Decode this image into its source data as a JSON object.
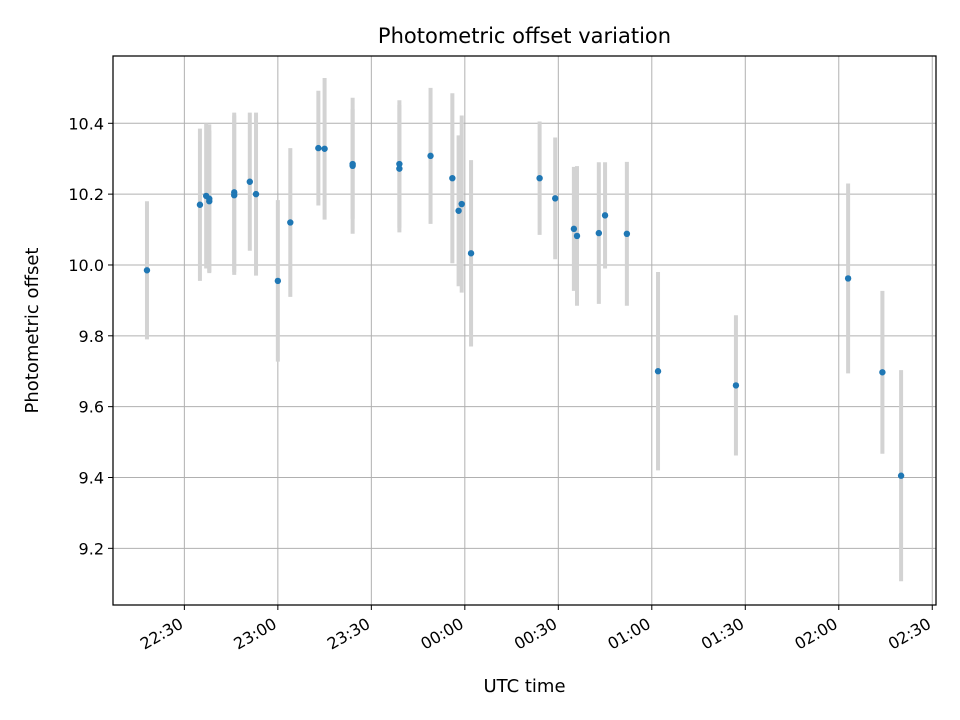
{
  "chart_data": {
    "type": "scatter",
    "title": "Photometric offset variation",
    "xlabel": "UTC time",
    "ylabel": "Photometric offset",
    "x_ticks": [
      "22:30",
      "23:00",
      "23:30",
      "00:00",
      "00:30",
      "01:00",
      "01:30",
      "02:00",
      "02:30"
    ],
    "x_tick_minutes": [
      -90,
      -60,
      -30,
      0,
      30,
      60,
      90,
      120,
      150
    ],
    "y_ticks": [
      "9.2",
      "9.4",
      "9.6",
      "9.8",
      "10.0",
      "10.2",
      "10.4"
    ],
    "xlim_minutes": [
      -112.9,
      151.2
    ],
    "ylim": [
      9.04,
      10.59
    ],
    "grid": true,
    "colors": {
      "point": "#1f77b4",
      "errorbar": "#d3d3d3",
      "grid": "#b0b0b0"
    },
    "points": [
      {
        "time": "22:18",
        "y": 9.985,
        "err": 0.195
      },
      {
        "time": "22:35",
        "y": 10.17,
        "err": 0.215
      },
      {
        "time": "22:37",
        "y": 10.195,
        "err": 0.205
      },
      {
        "time": "22:38",
        "y": 10.18,
        "err": 0.2
      },
      {
        "time": "22:38",
        "y": 10.187,
        "err": 0.21
      },
      {
        "time": "22:46",
        "y": 10.205,
        "err": 0.225
      },
      {
        "time": "22:46",
        "y": 10.197,
        "err": 0.225
      },
      {
        "time": "22:51",
        "y": 10.235,
        "err": 0.195
      },
      {
        "time": "22:53",
        "y": 10.2,
        "err": 0.23
      },
      {
        "time": "23:00",
        "y": 9.955,
        "err": 0.228
      },
      {
        "time": "23:04",
        "y": 10.12,
        "err": 0.21
      },
      {
        "time": "23:13",
        "y": 10.33,
        "err": 0.162
      },
      {
        "time": "23:15",
        "y": 10.328,
        "err": 0.2
      },
      {
        "time": "23:24",
        "y": 10.28,
        "err": 0.192
      },
      {
        "time": "23:24",
        "y": 10.285,
        "err": 0.155
      },
      {
        "time": "23:39",
        "y": 10.285,
        "err": 0.18
      },
      {
        "time": "23:39",
        "y": 10.272,
        "err": 0.18
      },
      {
        "time": "23:49",
        "y": 10.308,
        "err": 0.192
      },
      {
        "time": "23:56",
        "y": 10.245,
        "err": 0.24
      },
      {
        "time": "23:58",
        "y": 10.153,
        "err": 0.213
      },
      {
        "time": "23:59",
        "y": 10.172,
        "err": 0.25
      },
      {
        "time": "00:02",
        "y": 10.033,
        "err": 0.263
      },
      {
        "time": "00:24",
        "y": 10.245,
        "err": 0.16
      },
      {
        "time": "00:29",
        "y": 10.188,
        "err": 0.172
      },
      {
        "time": "00:35",
        "y": 10.102,
        "err": 0.175
      },
      {
        "time": "00:36",
        "y": 10.082,
        "err": 0.197
      },
      {
        "time": "00:43",
        "y": 10.09,
        "err": 0.2
      },
      {
        "time": "00:45",
        "y": 10.14,
        "err": 0.15
      },
      {
        "time": "00:52",
        "y": 10.088,
        "err": 0.203
      },
      {
        "time": "01:02",
        "y": 9.7,
        "err": 0.28
      },
      {
        "time": "01:27",
        "y": 9.66,
        "err": 0.198
      },
      {
        "time": "02:03",
        "y": 9.962,
        "err": 0.268
      },
      {
        "time": "02:14",
        "y": 9.697,
        "err": 0.23
      },
      {
        "time": "02:20",
        "y": 9.405,
        "err": 0.298
      }
    ]
  }
}
